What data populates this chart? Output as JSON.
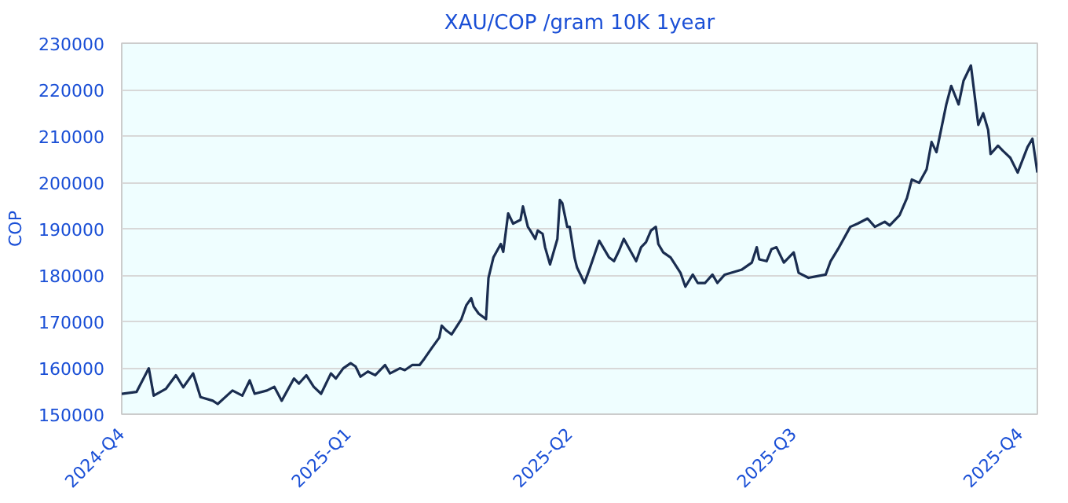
{
  "chart_data": {
    "type": "line",
    "title": "XAU/COP /gram 10K 1year",
    "ylabel": "COP",
    "xlim": [
      "2024-10-01",
      "2025-10-08"
    ],
    "xticks": [
      {
        "value": "2024-10-01",
        "label": "2024-Q4"
      },
      {
        "value": "2025-01-01",
        "label": "2025-Q1"
      },
      {
        "value": "2025-04-01",
        "label": "2025-Q2"
      },
      {
        "value": "2025-07-01",
        "label": "2025-Q3"
      },
      {
        "value": "2025-10-01",
        "label": "2025-Q4"
      }
    ],
    "ylim": [
      150000,
      230000
    ],
    "yticks": [
      150000,
      160000,
      170000,
      180000,
      190000,
      200000,
      210000,
      220000,
      230000
    ],
    "grid": "y",
    "series": [
      {
        "color": "#1a2d50",
        "x": [
          "2024-10-01",
          "2024-10-07",
          "2024-10-12",
          "2024-10-14",
          "2024-10-19",
          "2024-10-23",
          "2024-10-26",
          "2024-10-30",
          "2024-11-02",
          "2024-11-07",
          "2024-11-09",
          "2024-11-15",
          "2024-11-19",
          "2024-11-22",
          "2024-11-24",
          "2024-11-29",
          "2024-12-02",
          "2024-12-05",
          "2024-12-10",
          "2024-12-12",
          "2024-12-15",
          "2024-12-18",
          "2024-12-21",
          "2024-12-25",
          "2024-12-27",
          "2024-12-30",
          "2025-01-02",
          "2025-01-04",
          "2025-01-06",
          "2025-01-09",
          "2025-01-12",
          "2025-01-16",
          "2025-01-18",
          "2025-01-22",
          "2025-01-24",
          "2025-01-27",
          "2025-01-30",
          "2025-02-01",
          "2025-02-04",
          "2025-02-07",
          "2025-02-08",
          "2025-02-10",
          "2025-02-12",
          "2025-02-16",
          "2025-02-18",
          "2025-02-20",
          "2025-02-21",
          "2025-02-23",
          "2025-02-26",
          "2025-02-27",
          "2025-03-01",
          "2025-03-04",
          "2025-03-05",
          "2025-03-07",
          "2025-03-09",
          "2025-03-12",
          "2025-03-13",
          "2025-03-15",
          "2025-03-16",
          "2025-03-18",
          "2025-03-19",
          "2025-03-21",
          "2025-03-22",
          "2025-03-24",
          "2025-03-27",
          "2025-03-28",
          "2025-03-29",
          "2025-03-31",
          "2025-04-01",
          "2025-04-03",
          "2025-04-04",
          "2025-04-06",
          "2025-04-07",
          "2025-04-09",
          "2025-04-13",
          "2025-04-17",
          "2025-04-19",
          "2025-04-21",
          "2025-04-23",
          "2025-04-26",
          "2025-04-28",
          "2025-04-30",
          "2025-05-02",
          "2025-05-04",
          "2025-05-06",
          "2025-05-07",
          "2025-05-09",
          "2025-05-12",
          "2025-05-16",
          "2025-05-18",
          "2025-05-21",
          "2025-05-23",
          "2025-05-26",
          "2025-05-29",
          "2025-05-31",
          "2025-06-03",
          "2025-06-10",
          "2025-06-14",
          "2025-06-16",
          "2025-06-17",
          "2025-06-20",
          "2025-06-22",
          "2025-06-24",
          "2025-06-27",
          "2025-06-29",
          "2025-07-01",
          "2025-07-03",
          "2025-07-07",
          "2025-07-11",
          "2025-07-14",
          "2025-07-16",
          "2025-07-19",
          "2025-07-24",
          "2025-07-27",
          "2025-07-31",
          "2025-08-03",
          "2025-08-07",
          "2025-08-09",
          "2025-08-13",
          "2025-08-16",
          "2025-08-18",
          "2025-08-21",
          "2025-08-24",
          "2025-08-26",
          "2025-08-28",
          "2025-09-01",
          "2025-09-03",
          "2025-09-06",
          "2025-09-08",
          "2025-09-11",
          "2025-09-14",
          "2025-09-16",
          "2025-09-18",
          "2025-09-19",
          "2025-09-22",
          "2025-09-24",
          "2025-09-27",
          "2025-09-30",
          "2025-10-04",
          "2025-10-06",
          "2025-10-08"
        ],
        "values": [
          154400,
          154800,
          159900,
          154000,
          155500,
          158400,
          155800,
          158800,
          153700,
          152900,
          152200,
          155100,
          154000,
          157300,
          154400,
          155100,
          155900,
          152900,
          157700,
          156600,
          158400,
          155900,
          154400,
          158800,
          157700,
          159900,
          161000,
          160300,
          158100,
          159200,
          158400,
          160600,
          158800,
          159900,
          159500,
          160600,
          160600,
          162000,
          164300,
          166500,
          169100,
          168000,
          167200,
          170500,
          173500,
          175000,
          173200,
          171700,
          170500,
          179400,
          183800,
          186700,
          185000,
          193300,
          191100,
          191900,
          194800,
          190400,
          189600,
          187800,
          189600,
          188900,
          186000,
          182300,
          187800,
          196200,
          195500,
          190400,
          190400,
          183700,
          181600,
          179400,
          178300,
          181200,
          187400,
          183800,
          183000,
          185200,
          187800,
          184900,
          183000,
          186000,
          187100,
          189600,
          190400,
          186700,
          184900,
          183800,
          180500,
          177500,
          180100,
          178300,
          178300,
          180100,
          178300,
          180100,
          181200,
          182700,
          186000,
          183400,
          183000,
          185600,
          186000,
          182700,
          183800,
          184900,
          180500,
          179400,
          179800,
          180100,
          183000,
          185600,
          190400,
          191100,
          192200,
          190400,
          191500,
          190700,
          192900,
          196600,
          200600,
          199900,
          202800,
          208700,
          206500,
          216800,
          220800,
          216800,
          221900,
          225200,
          212400,
          214900,
          211300,
          206100,
          207900,
          206800,
          205300,
          202100,
          207600,
          209400,
          202100
        ]
      }
    ]
  }
}
